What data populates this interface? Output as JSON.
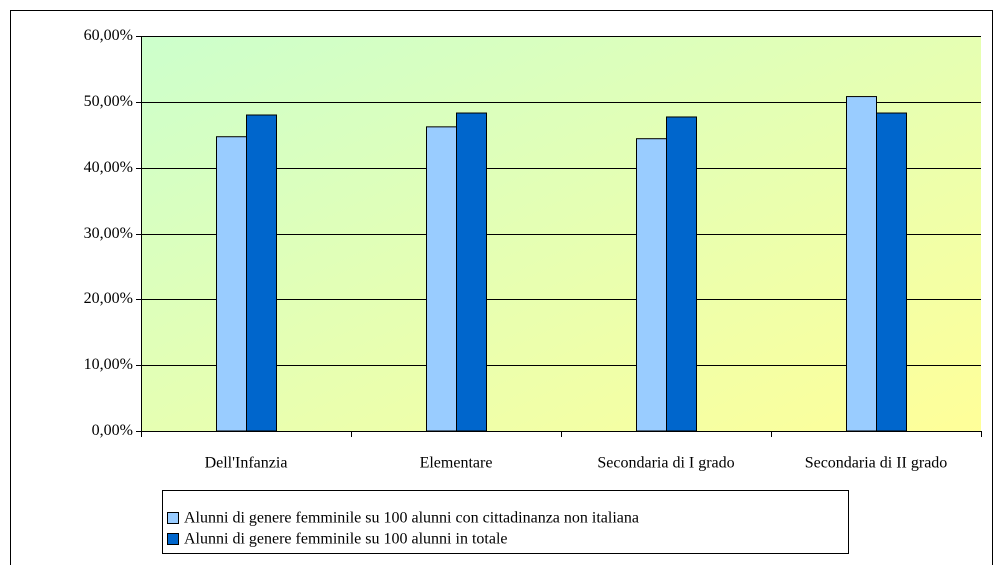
{
  "chart_data": {
    "type": "bar",
    "categories": [
      "Dell'Infanzia",
      "Elementare",
      "Secondaria di I grado",
      "Secondaria di II grado"
    ],
    "series": [
      {
        "name": "Alunni di genere femminile su 100 alunni con cittadinanza non italiana",
        "color": "#99ccff",
        "values": [
          44.7,
          46.2,
          44.4,
          50.8
        ]
      },
      {
        "name": "Alunni di genere femminile su 100 alunni in totale",
        "color": "#0066cc",
        "values": [
          48.0,
          48.3,
          47.7,
          48.3
        ]
      }
    ],
    "ylim": [
      0,
      60
    ],
    "yticks": [
      {
        "value": 0,
        "label": "0,00%"
      },
      {
        "value": 10,
        "label": "10,00%"
      },
      {
        "value": 20,
        "label": "20,00%"
      },
      {
        "value": 30,
        "label": "30,00%"
      },
      {
        "value": 40,
        "label": "40,00%"
      },
      {
        "value": 50,
        "label": "50,00%"
      },
      {
        "value": 60,
        "label": "60,00%"
      }
    ],
    "grid": true,
    "legend": "bottom"
  }
}
